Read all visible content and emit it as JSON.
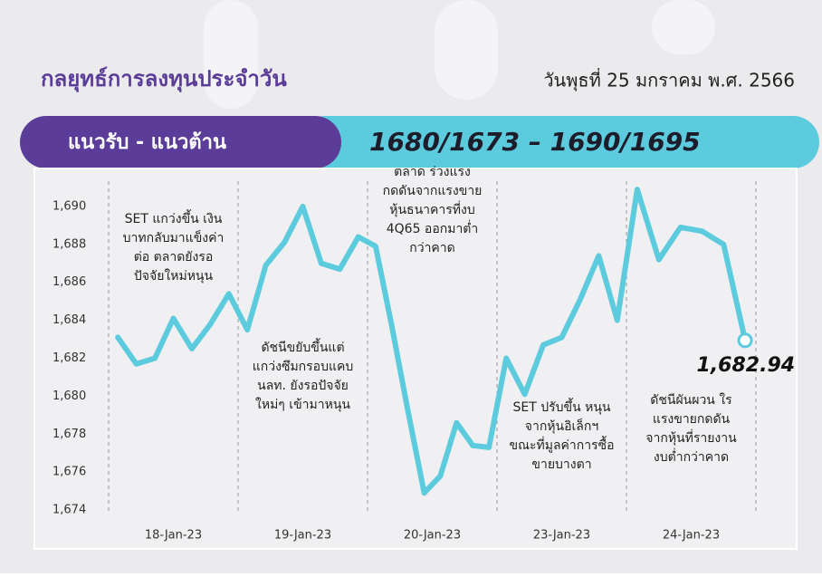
{
  "header": {
    "title": "กลยุทธ์การลงทุนประจำวัน",
    "date": "วันพุธที่ 25 มกราคม พ.ศ. 2566"
  },
  "banner": {
    "label": "แนวรับ - แนวต้าน",
    "levels": "1680/1673 – 1690/1695"
  },
  "chart_data": {
    "type": "line",
    "color": "#5ccbdd",
    "ylim": [
      1673,
      1691
    ],
    "yticks": [
      {
        "value": 1674,
        "label": "1,674"
      },
      {
        "value": 1676,
        "label": "1,676"
      },
      {
        "value": 1678,
        "label": "1,678"
      },
      {
        "value": 1680,
        "label": "1,680"
      },
      {
        "value": 1682,
        "label": "1,682"
      },
      {
        "value": 1684,
        "label": "1,684"
      },
      {
        "value": 1686,
        "label": "1,686"
      },
      {
        "value": 1688,
        "label": "1,688"
      },
      {
        "value": 1690,
        "label": "1,690"
      }
    ],
    "days": [
      {
        "label": "18-Jan-23",
        "values": [
          1683.1,
          1681.7,
          1682.0,
          1684.1,
          1682.5,
          1683.8,
          1685.4
        ],
        "annotation": [
          "SET แกว่งขึ้น เงิน",
          "บาทกลับมาแข็งค่า",
          "ต่อ ตลาดยังรอ",
          "ปัจจัยใหม่หนุน"
        ]
      },
      {
        "label": "19-Jan-23",
        "values": [
          1683.5,
          1686.9,
          1688.1,
          1690.0,
          1687.0,
          1686.7,
          1688.4
        ],
        "annotation": [
          "ดัชนีขยับขึ้นแต่",
          "แกว่งซึมกรอบแคบ",
          "นลท. ยังรอปัจจัย",
          "ใหม่ๆ เข้ามาหนุน"
        ]
      },
      {
        "label": "20-Jan-23",
        "values": [
          1687.9,
          1683.7,
          1679.2,
          1674.9,
          1675.8,
          1678.6,
          1677.4,
          1677.3
        ],
        "annotation": [
          "ตลาด ร่วงแรง",
          "กดดันจากแรงขาย",
          "หุ้นธนาคารที่งบ",
          "4Q65 ออกมาต่ำ",
          "กว่าคาด"
        ]
      },
      {
        "label": "23-Jan-23",
        "values": [
          1682.0,
          1680.1,
          1682.7,
          1683.1,
          1685.1,
          1687.4,
          1684.0
        ],
        "annotation": [
          "SET ปรับขึ้น หนุน",
          "จากหุ้นอิเล็กฯ",
          "ขณะที่มูลค่าการซื้อ",
          "ขายบางตา"
        ]
      },
      {
        "label": "24-Jan-23",
        "values": [
          1690.9,
          1687.2,
          1688.9,
          1688.7,
          1688.0,
          1682.94
        ],
        "value_labels": [
          null,
          null,
          null,
          null,
          null,
          "1,682.94"
        ],
        "annotation": [
          "ดัชนีผันผวน ใร",
          "แรงขายกดดัน",
          "จากหุ้นที่รายงาน",
          "งบต่ำกว่าคาด"
        ]
      }
    ]
  }
}
